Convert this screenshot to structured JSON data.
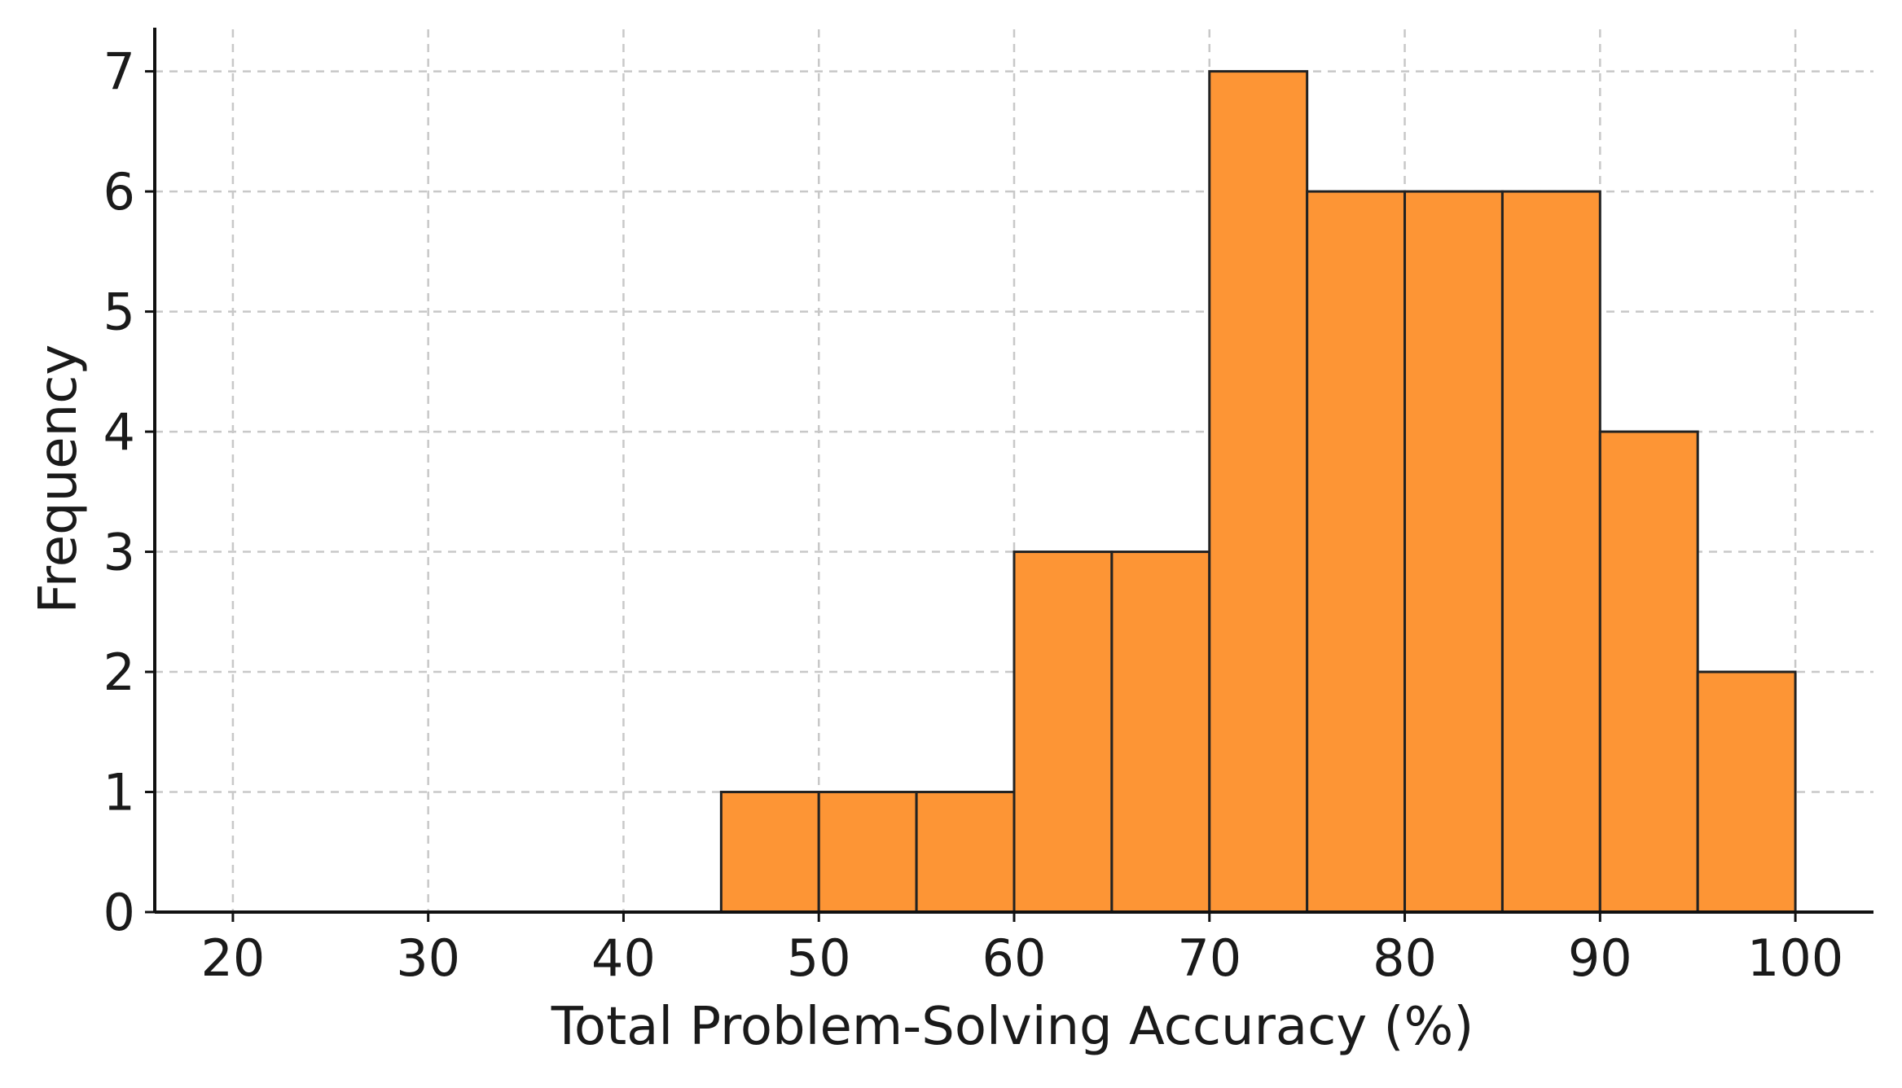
{
  "chart_data": {
    "type": "bar",
    "bin_edges": [
      45,
      50,
      55,
      60,
      65,
      70,
      75,
      80,
      85,
      90,
      95,
      100
    ],
    "values": [
      1,
      1,
      1,
      3,
      3,
      7,
      6,
      6,
      6,
      4,
      2
    ],
    "title": "",
    "xlabel": "Total Problem-Solving Accuracy (%)",
    "ylabel": "Frequency",
    "xlim": [
      16,
      104
    ],
    "ylim": [
      0,
      7.35
    ],
    "xticks": [
      20,
      30,
      40,
      50,
      60,
      70,
      80,
      90,
      100
    ],
    "yticks": [
      0,
      1,
      2,
      3,
      4,
      5,
      6,
      7
    ],
    "grid": true,
    "bar_color": "#fd9535",
    "edge_color": "#222222"
  }
}
